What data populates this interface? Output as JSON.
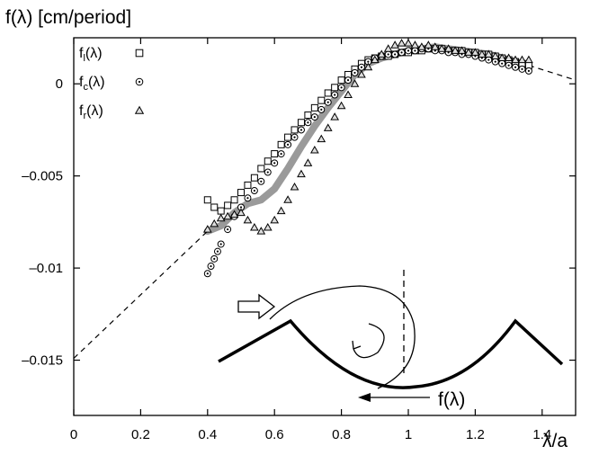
{
  "chart_data": {
    "type": "scatter",
    "ylabel": "f(λ) [cm/period]",
    "xlabel": "λ/a",
    "xlim": [
      0,
      1.5
    ],
    "ylim": [
      -0.018,
      0.0025
    ],
    "xticks": [
      {
        "value": 0,
        "label": "0"
      },
      {
        "value": 0.2,
        "label": "0.2"
      },
      {
        "value": 0.4,
        "label": "0.4"
      },
      {
        "value": 0.6,
        "label": "0.6"
      },
      {
        "value": 0.8,
        "label": "0.8"
      },
      {
        "value": 1.0,
        "label": "1"
      },
      {
        "value": 1.2,
        "label": "1.2"
      },
      {
        "value": 1.4,
        "label": "1.4"
      }
    ],
    "yticks": [
      {
        "value": 0,
        "label": "0"
      },
      {
        "value": -0.005,
        "label": "–0.005"
      },
      {
        "value": -0.01,
        "label": "–0.01"
      },
      {
        "value": -0.015,
        "label": "–0.015"
      }
    ],
    "grid": false,
    "legend": {
      "position": "top-left",
      "entries": [
        {
          "base": "f",
          "sub": "l",
          "tail": "(λ)",
          "marker": "square"
        },
        {
          "base": "f",
          "sub": "c",
          "tail": "(λ)",
          "marker": "circle"
        },
        {
          "base": "f",
          "sub": "r",
          "tail": "(λ)",
          "marker": "triangle"
        }
      ]
    },
    "series": [
      {
        "marker": "square",
        "x": [
          0.4,
          0.42,
          0.44,
          0.46,
          0.48,
          0.5,
          0.52,
          0.54,
          0.56,
          0.58,
          0.6,
          0.62,
          0.64,
          0.66,
          0.68,
          0.7,
          0.72,
          0.74,
          0.76,
          0.78,
          0.8,
          0.82,
          0.84,
          0.86,
          0.88,
          0.9,
          0.92,
          0.94,
          0.96,
          0.98,
          1.0,
          1.02,
          1.04,
          1.06,
          1.08,
          1.1,
          1.12,
          1.14,
          1.16,
          1.18,
          1.2,
          1.22,
          1.24,
          1.26,
          1.28,
          1.3,
          1.32,
          1.34,
          1.36
        ],
        "y": [
          -0.0063,
          -0.0067,
          -0.0069,
          -0.0066,
          -0.0063,
          -0.0059,
          -0.0055,
          -0.0051,
          -0.0046,
          -0.0042,
          -0.0038,
          -0.0033,
          -0.0029,
          -0.0025,
          -0.0021,
          -0.0017,
          -0.0013,
          -0.0009,
          -0.0005,
          -0.0002,
          0.0002,
          0.0005,
          0.0008,
          0.0011,
          0.0013,
          0.0014,
          0.0015,
          0.0015,
          0.0016,
          0.0017,
          0.0017,
          0.0018,
          0.0018,
          0.0019,
          0.0019,
          0.0019,
          0.0018,
          0.0018,
          0.0018,
          0.0017,
          0.0017,
          0.0016,
          0.0016,
          0.0015,
          0.0014,
          0.0013,
          0.0012,
          0.0011,
          0.001
        ]
      },
      {
        "marker": "circle",
        "x": [
          0.4,
          0.41,
          0.42,
          0.43,
          0.44,
          0.46,
          0.48,
          0.5,
          0.52,
          0.54,
          0.56,
          0.58,
          0.6,
          0.62,
          0.64,
          0.66,
          0.68,
          0.7,
          0.72,
          0.74,
          0.76,
          0.78,
          0.8,
          0.82,
          0.84,
          0.86,
          0.88,
          0.9,
          0.92,
          0.94,
          0.96,
          0.98,
          1.0,
          1.02,
          1.04,
          1.06,
          1.08,
          1.1,
          1.12,
          1.14,
          1.16,
          1.18,
          1.2,
          1.22,
          1.24,
          1.26,
          1.28,
          1.3,
          1.32,
          1.34,
          1.36
        ],
        "y": [
          -0.0103,
          -0.0099,
          -0.0095,
          -0.0091,
          -0.0087,
          -0.0079,
          -0.0072,
          -0.0067,
          -0.0062,
          -0.0058,
          -0.0053,
          -0.0048,
          -0.0043,
          -0.0038,
          -0.0033,
          -0.0029,
          -0.0025,
          -0.0021,
          -0.0018,
          -0.0014,
          -0.001,
          -0.0006,
          -0.0002,
          0.0002,
          0.0006,
          0.0009,
          0.0012,
          0.0014,
          0.0015,
          0.0016,
          0.0016,
          0.0017,
          0.0018,
          0.0018,
          0.0019,
          0.0019,
          0.0018,
          0.0018,
          0.0017,
          0.0017,
          0.0016,
          0.0016,
          0.0015,
          0.0014,
          0.0013,
          0.0012,
          0.0011,
          0.001,
          0.0009,
          0.0008,
          0.0007
        ]
      },
      {
        "marker": "triangle",
        "x": [
          0.4,
          0.42,
          0.44,
          0.46,
          0.48,
          0.5,
          0.52,
          0.54,
          0.56,
          0.58,
          0.6,
          0.62,
          0.64,
          0.66,
          0.68,
          0.7,
          0.72,
          0.74,
          0.76,
          0.78,
          0.8,
          0.82,
          0.84,
          0.86,
          0.88,
          0.9,
          0.92,
          0.94,
          0.96,
          0.98,
          1.0,
          1.02,
          1.04,
          1.06,
          1.08,
          1.1,
          1.12,
          1.14,
          1.16,
          1.18,
          1.2,
          1.22,
          1.24,
          1.26,
          1.28,
          1.3,
          1.32,
          1.34,
          1.36
        ],
        "y": [
          -0.0079,
          -0.0076,
          -0.0073,
          -0.0072,
          -0.0071,
          -0.007,
          -0.0074,
          -0.0078,
          -0.008,
          -0.0078,
          -0.0074,
          -0.0069,
          -0.0063,
          -0.0056,
          -0.0049,
          -0.0043,
          -0.0036,
          -0.003,
          -0.0024,
          -0.0018,
          -0.0012,
          -0.0006,
          0.0,
          0.0005,
          0.0009,
          0.0013,
          0.0016,
          0.0019,
          0.0021,
          0.0022,
          0.0022,
          0.0021,
          0.002,
          0.0021,
          0.002,
          0.0019,
          0.0019,
          0.0018,
          0.0018,
          0.0017,
          0.0017,
          0.0016,
          0.0016,
          0.0015,
          0.0014,
          0.0014,
          0.0013,
          0.0013,
          0.0013
        ]
      },
      {
        "type": "line",
        "style": "thick-gray",
        "color": "#9a9a9a",
        "x": [
          0.4,
          0.44,
          0.48,
          0.52,
          0.56,
          0.6,
          0.64,
          0.68,
          0.72,
          0.76,
          0.8,
          0.84,
          0.88,
          0.92,
          0.96,
          1.0,
          1.04,
          1.08,
          1.12,
          1.16,
          1.2,
          1.24,
          1.28,
          1.32,
          1.36
        ],
        "y": [
          -0.008,
          -0.0077,
          -0.007,
          -0.0065,
          -0.0063,
          -0.0057,
          -0.0046,
          -0.0034,
          -0.0023,
          -0.0013,
          -0.0004,
          0.0005,
          0.0011,
          0.0014,
          0.0016,
          0.0018,
          0.0019,
          0.002,
          0.0019,
          0.0018,
          0.0017,
          0.0016,
          0.0014,
          0.0012,
          0.001
        ]
      },
      {
        "type": "line",
        "style": "dashed",
        "x": [
          0,
          0.4
        ],
        "y": [
          -0.0149,
          -0.008
        ]
      },
      {
        "type": "line",
        "style": "dashed",
        "x": [
          1.36,
          1.5
        ],
        "y": [
          0.001,
          0.0002
        ]
      }
    ],
    "inset": {
      "label": "f(λ)",
      "description_hidden": true
    }
  }
}
